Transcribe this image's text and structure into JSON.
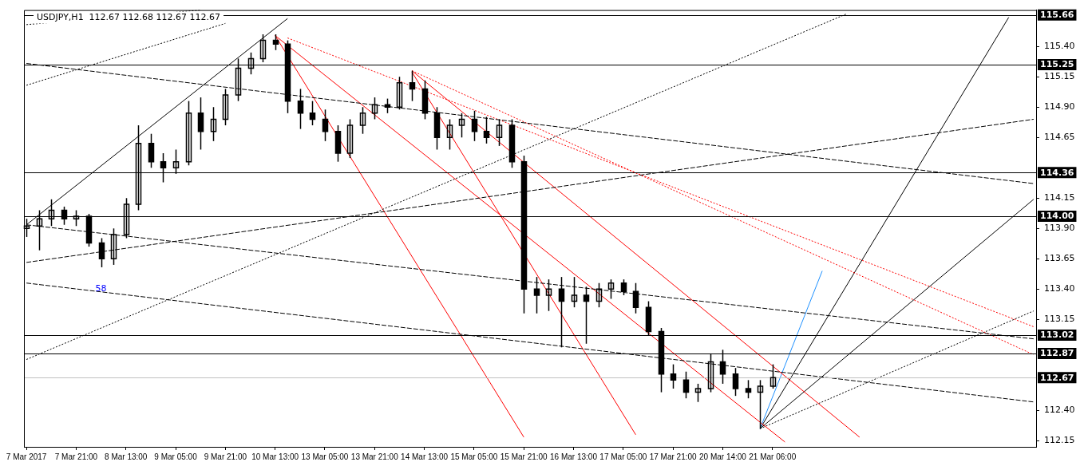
{
  "chart_data": {
    "type": "candlestick",
    "title": "USDJPY,H1  112.67 112.68 112.67 112.67",
    "color": "#000000",
    "categories": [
      "7 Mar 2017",
      null,
      null,
      null,
      "7 Mar 21:00",
      null,
      null,
      null,
      "8 Mar 13:00",
      null,
      null,
      null,
      "9 Mar 05:00",
      null,
      null,
      null,
      "9 Mar 21:00",
      null,
      null,
      null,
      "10 Mar 13:00",
      null,
      null,
      null,
      "13 Mar 05:00",
      null,
      null,
      null,
      "13 Mar 21:00",
      null,
      null,
      null,
      "14 Mar 13:00",
      null,
      null,
      null,
      "15 Mar 05:00",
      null,
      null,
      null,
      "15 Mar 21:00",
      null,
      null,
      null,
      "16 Mar 13:00",
      null,
      null,
      null,
      "17 Mar 05:00",
      null,
      null,
      null,
      "17 Mar 21:00",
      null,
      null,
      null,
      "20 Mar 14:00",
      null,
      null,
      null,
      "21 Mar 06:00",
      null,
      null,
      null,
      null,
      null,
      null,
      null,
      null,
      null,
      null,
      null,
      null,
      null,
      null,
      null,
      null,
      null,
      null,
      null,
      null,
      null
    ],
    "ohlc": [
      [
        113.9,
        113.98,
        113.83,
        113.92
      ],
      [
        113.92,
        114.05,
        113.72,
        113.98
      ],
      [
        113.98,
        114.14,
        113.92,
        114.05
      ],
      [
        114.05,
        114.08,
        113.93,
        113.98
      ],
      [
        113.98,
        114.05,
        113.92,
        114.0
      ],
      [
        114.0,
        114.02,
        113.75,
        113.78
      ],
      [
        113.78,
        113.82,
        113.58,
        113.65
      ],
      [
        113.65,
        113.9,
        113.6,
        113.85
      ],
      [
        113.85,
        114.15,
        113.82,
        114.1
      ],
      [
        114.1,
        114.75,
        114.05,
        114.6
      ],
      [
        114.6,
        114.68,
        114.4,
        114.45
      ],
      [
        114.45,
        114.52,
        114.28,
        114.4
      ],
      [
        114.4,
        114.55,
        114.35,
        114.45
      ],
      [
        114.45,
        114.95,
        114.42,
        114.85
      ],
      [
        114.85,
        114.98,
        114.55,
        114.7
      ],
      [
        114.7,
        114.9,
        114.62,
        114.8
      ],
      [
        114.8,
        115.05,
        114.75,
        115.0
      ],
      [
        115.0,
        115.3,
        114.95,
        115.22
      ],
      [
        115.22,
        115.35,
        115.17,
        115.3
      ],
      [
        115.3,
        115.5,
        115.27,
        115.45
      ],
      [
        115.45,
        115.5,
        115.37,
        115.42
      ],
      [
        115.42,
        115.45,
        114.85,
        114.95
      ],
      [
        114.95,
        115.05,
        114.72,
        114.85
      ],
      [
        114.85,
        114.95,
        114.75,
        114.8
      ],
      [
        114.8,
        114.88,
        114.62,
        114.7
      ],
      [
        114.7,
        114.75,
        114.45,
        114.52
      ],
      [
        114.52,
        114.8,
        114.48,
        114.75
      ],
      [
        114.75,
        114.9,
        114.68,
        114.85
      ],
      [
        114.85,
        114.98,
        114.8,
        114.92
      ],
      [
        114.92,
        114.97,
        114.85,
        114.9
      ],
      [
        114.9,
        115.15,
        114.88,
        115.1
      ],
      [
        115.1,
        115.2,
        114.95,
        115.05
      ],
      [
        115.05,
        115.12,
        114.8,
        114.85
      ],
      [
        114.85,
        114.9,
        114.55,
        114.65
      ],
      [
        114.65,
        114.8,
        114.55,
        114.75
      ],
      [
        114.75,
        114.85,
        114.65,
        114.8
      ],
      [
        114.8,
        114.87,
        114.62,
        114.7
      ],
      [
        114.7,
        114.82,
        114.6,
        114.65
      ],
      [
        114.65,
        114.8,
        114.58,
        114.75
      ],
      [
        114.75,
        114.8,
        114.4,
        114.45
      ],
      [
        114.45,
        114.5,
        113.2,
        113.4
      ],
      [
        113.4,
        113.5,
        113.2,
        113.35
      ],
      [
        113.35,
        113.48,
        113.22,
        113.4
      ],
      [
        113.4,
        113.5,
        112.92,
        113.3
      ],
      [
        113.3,
        113.5,
        113.25,
        113.35
      ],
      [
        113.35,
        113.42,
        112.95,
        113.3
      ],
      [
        113.3,
        113.45,
        113.25,
        113.4
      ],
      [
        113.4,
        113.48,
        113.32,
        113.45
      ],
      [
        113.45,
        113.48,
        113.35,
        113.38
      ],
      [
        113.38,
        113.45,
        113.2,
        113.25
      ],
      [
        113.25,
        113.3,
        113.02,
        113.05
      ],
      [
        113.05,
        113.08,
        112.55,
        112.7
      ],
      [
        112.7,
        112.78,
        112.58,
        112.65
      ],
      [
        112.65,
        112.72,
        112.5,
        112.55
      ],
      [
        112.55,
        112.62,
        112.47,
        112.58
      ],
      [
        112.58,
        112.87,
        112.55,
        112.8
      ],
      [
        112.8,
        112.9,
        112.62,
        112.7
      ],
      [
        112.7,
        112.75,
        112.52,
        112.58
      ],
      [
        112.58,
        112.65,
        112.5,
        112.55
      ],
      [
        112.55,
        112.65,
        112.25,
        112.6
      ],
      [
        112.6,
        112.78,
        112.58,
        112.67
      ],
      null,
      null,
      null,
      null,
      null,
      null,
      null,
      null,
      null,
      null,
      null,
      null,
      null,
      null,
      null,
      null,
      null,
      null,
      null,
      null,
      null
    ],
    "series": [
      {
        "type": "line",
        "color": "#000000",
        "line_style": "solid",
        "values": [
          113.93,
          null,
          null,
          null,
          null,
          null,
          null,
          null,
          null,
          null,
          null,
          null,
          null,
          null,
          null,
          null,
          null,
          null,
          null,
          null,
          null,
          115.63,
          null,
          null,
          null,
          null,
          null,
          null,
          null,
          null,
          null,
          null,
          null,
          null,
          null,
          null,
          null,
          null,
          null,
          null,
          null,
          null,
          null,
          null,
          null,
          null,
          null,
          null,
          null,
          null,
          null,
          null,
          null,
          null,
          null,
          null,
          null,
          null,
          null,
          null,
          null,
          null,
          null,
          null,
          null,
          null,
          null,
          null,
          null,
          null,
          null,
          null,
          null,
          null,
          null,
          null,
          null,
          null,
          null,
          null,
          null,
          null
        ]
      },
      {
        "type": "line",
        "color": "#000000",
        "line_style": "dotted",
        "values": [
          112.82,
          null,
          null,
          null,
          null,
          null,
          null,
          null,
          null,
          null,
          null,
          null,
          null,
          null,
          null,
          null,
          null,
          null,
          null,
          null,
          null,
          null,
          null,
          null,
          null,
          null,
          null,
          null,
          null,
          null,
          null,
          null,
          null,
          null,
          null,
          null,
          null,
          null,
          null,
          null,
          null,
          null,
          null,
          null,
          null,
          null,
          null,
          null,
          null,
          null,
          null,
          null,
          null,
          null,
          null,
          null,
          null,
          null,
          null,
          null,
          null,
          null,
          null,
          null,
          null,
          null,
          115.67,
          null,
          null,
          null,
          null,
          null,
          null,
          null,
          null,
          null,
          null,
          null,
          null,
          null,
          null,
          null
        ]
      },
      {
        "type": "line",
        "color": "#000000",
        "line_style": "dotted",
        "values": [
          115.08,
          null,
          null,
          null,
          null,
          null,
          null,
          null,
          null,
          null,
          null,
          null,
          null,
          null,
          null,
          null,
          115.59,
          null,
          null,
          null,
          null,
          null,
          null,
          null,
          null,
          null,
          null,
          null,
          null,
          null,
          null,
          null,
          null,
          null,
          null,
          null,
          null,
          null,
          null,
          null,
          null,
          null,
          null,
          null,
          null,
          null,
          null,
          null,
          null,
          null,
          null,
          null,
          null,
          null,
          null,
          null,
          null,
          null,
          null,
          null,
          null,
          null,
          null,
          null,
          null,
          null,
          null,
          null,
          null,
          null,
          null,
          null,
          null,
          null,
          null,
          null,
          null,
          null,
          null,
          null,
          null,
          null
        ]
      },
      {
        "type": "line",
        "color": "#000000",
        "line_style": "dotted",
        "values": [
          115.58,
          null,
          null,
          null,
          null,
          null,
          null,
          null,
          null,
          null,
          null,
          null,
          null,
          null,
          115.7,
          null,
          null,
          null,
          null,
          null,
          null,
          null,
          null,
          null,
          null,
          null,
          null,
          null,
          null,
          null,
          null,
          null,
          null,
          null,
          null,
          null,
          null,
          null,
          null,
          null,
          null,
          null,
          null,
          null,
          null,
          null,
          null,
          null,
          null,
          null,
          null,
          null,
          null,
          null,
          null,
          null,
          null,
          null,
          null,
          null,
          null,
          null,
          null,
          null,
          null,
          null,
          null,
          null,
          null,
          null,
          null,
          null,
          null,
          null,
          null,
          null,
          null,
          null,
          null,
          null,
          null,
          null
        ]
      },
      {
        "type": "line",
        "color": "#000000",
        "line_style": "dashed",
        "values": [
          115.26,
          null,
          null,
          null,
          null,
          null,
          null,
          null,
          null,
          null,
          null,
          null,
          null,
          null,
          null,
          null,
          null,
          null,
          null,
          null,
          null,
          null,
          null,
          null,
          null,
          null,
          null,
          null,
          null,
          null,
          null,
          null,
          null,
          null,
          null,
          null,
          null,
          null,
          null,
          null,
          null,
          null,
          null,
          null,
          null,
          null,
          null,
          null,
          null,
          null,
          null,
          null,
          null,
          null,
          null,
          null,
          null,
          null,
          null,
          null,
          null,
          null,
          null,
          null,
          null,
          null,
          null,
          null,
          null,
          null,
          null,
          null,
          null,
          null,
          null,
          null,
          null,
          null,
          null,
          null,
          null,
          114.27
        ]
      },
      {
        "type": "line",
        "color": "#000000",
        "line_style": "dashed",
        "values": [
          113.62,
          null,
          null,
          null,
          null,
          null,
          null,
          null,
          null,
          null,
          null,
          null,
          null,
          null,
          null,
          null,
          null,
          null,
          null,
          null,
          null,
          null,
          null,
          null,
          null,
          null,
          null,
          null,
          null,
          null,
          null,
          null,
          null,
          null,
          null,
          null,
          null,
          null,
          null,
          null,
          null,
          null,
          null,
          null,
          null,
          null,
          null,
          null,
          null,
          null,
          null,
          null,
          null,
          null,
          null,
          null,
          null,
          null,
          null,
          null,
          null,
          null,
          null,
          null,
          null,
          null,
          null,
          null,
          null,
          null,
          null,
          null,
          null,
          null,
          null,
          null,
          null,
          null,
          null,
          null,
          null,
          114.8
        ]
      },
      {
        "type": "line",
        "color": "#000000",
        "line_style": "dashed",
        "values": [
          113.93,
          null,
          null,
          null,
          null,
          null,
          null,
          null,
          null,
          null,
          null,
          null,
          null,
          null,
          null,
          null,
          null,
          null,
          null,
          null,
          null,
          null,
          null,
          null,
          null,
          null,
          null,
          null,
          null,
          null,
          null,
          null,
          null,
          null,
          null,
          null,
          null,
          null,
          null,
          null,
          null,
          null,
          null,
          null,
          null,
          null,
          null,
          null,
          null,
          null,
          null,
          null,
          null,
          null,
          null,
          null,
          null,
          null,
          null,
          null,
          null,
          null,
          null,
          null,
          null,
          null,
          null,
          null,
          null,
          null,
          null,
          null,
          null,
          null,
          null,
          null,
          null,
          null,
          null,
          null,
          null,
          112.99
        ]
      },
      {
        "type": "line",
        "color": "#000000",
        "line_style": "dashed",
        "values": [
          113.45,
          null,
          null,
          null,
          null,
          null,
          null,
          null,
          null,
          null,
          null,
          null,
          null,
          null,
          null,
          null,
          null,
          null,
          null,
          null,
          null,
          null,
          null,
          null,
          null,
          null,
          null,
          null,
          null,
          null,
          null,
          null,
          null,
          null,
          null,
          null,
          null,
          null,
          null,
          null,
          null,
          null,
          null,
          null,
          null,
          null,
          null,
          null,
          null,
          null,
          null,
          null,
          null,
          null,
          null,
          null,
          null,
          null,
          null,
          null,
          null,
          null,
          null,
          null,
          null,
          null,
          null,
          null,
          null,
          null,
          null,
          null,
          null,
          null,
          null,
          null,
          null,
          null,
          null,
          null,
          null,
          112.47
        ]
      },
      {
        "type": "line",
        "color": "#ff0000",
        "line_style": "solid",
        "values": [
          null,
          null,
          null,
          null,
          null,
          null,
          null,
          null,
          null,
          null,
          null,
          null,
          null,
          null,
          null,
          null,
          null,
          null,
          null,
          null,
          115.49,
          null,
          null,
          null,
          null,
          null,
          null,
          null,
          null,
          null,
          null,
          null,
          null,
          null,
          null,
          null,
          null,
          null,
          null,
          null,
          112.18,
          null,
          null,
          null,
          null,
          null,
          null,
          null,
          null,
          null,
          null,
          null,
          null,
          null,
          null,
          null,
          null,
          null,
          null,
          null,
          null,
          null,
          null,
          null,
          null,
          null,
          null,
          null,
          null,
          null,
          null,
          null,
          null,
          null,
          null,
          null,
          null,
          null,
          null,
          null,
          null,
          null
        ]
      },
      {
        "type": "line",
        "color": "#ff0000",
        "line_style": "solid",
        "values": [
          null,
          null,
          null,
          null,
          null,
          null,
          null,
          null,
          null,
          null,
          null,
          null,
          null,
          null,
          null,
          null,
          null,
          null,
          null,
          null,
          null,
          null,
          null,
          null,
          null,
          null,
          null,
          null,
          null,
          null,
          null,
          115.19,
          null,
          null,
          null,
          null,
          null,
          null,
          null,
          null,
          null,
          null,
          null,
          null,
          null,
          null,
          null,
          null,
          null,
          112.2,
          null,
          null,
          null,
          null,
          null,
          null,
          null,
          null,
          null,
          null,
          null,
          null,
          null,
          null,
          null,
          null,
          null,
          null,
          null,
          null,
          null,
          null,
          null,
          null,
          null,
          null,
          null,
          null,
          null,
          null,
          null,
          null
        ]
      },
      {
        "type": "line",
        "color": "#ff0000",
        "line_style": "solid",
        "values": [
          null,
          null,
          null,
          null,
          null,
          null,
          null,
          null,
          null,
          null,
          null,
          null,
          null,
          null,
          null,
          null,
          null,
          null,
          null,
          null,
          115.49,
          null,
          null,
          null,
          null,
          null,
          null,
          null,
          null,
          null,
          null,
          null,
          null,
          null,
          null,
          null,
          null,
          null,
          null,
          null,
          null,
          null,
          null,
          null,
          null,
          null,
          null,
          null,
          null,
          null,
          null,
          null,
          null,
          null,
          null,
          null,
          null,
          null,
          null,
          null,
          null,
          112.14,
          null,
          null,
          null,
          null,
          null,
          null,
          null,
          null,
          null,
          null,
          null,
          null,
          null,
          null,
          null,
          null,
          null,
          null,
          null,
          null
        ]
      },
      {
        "type": "line",
        "color": "#ff0000",
        "line_style": "solid",
        "values": [
          null,
          null,
          null,
          null,
          null,
          null,
          null,
          null,
          null,
          null,
          null,
          null,
          null,
          null,
          null,
          null,
          null,
          null,
          null,
          null,
          null,
          null,
          null,
          null,
          null,
          null,
          null,
          null,
          null,
          null,
          null,
          115.2,
          null,
          null,
          null,
          null,
          null,
          null,
          null,
          null,
          null,
          null,
          null,
          null,
          null,
          null,
          null,
          null,
          null,
          null,
          null,
          null,
          null,
          null,
          null,
          null,
          null,
          null,
          null,
          null,
          null,
          null,
          null,
          null,
          null,
          null,
          null,
          112.18,
          null,
          null,
          null,
          null,
          null,
          null,
          null,
          null,
          null,
          null,
          null,
          null,
          null,
          null
        ]
      },
      {
        "type": "line",
        "color": "#ff0000",
        "line_style": "dotted",
        "values": [
          null,
          null,
          null,
          null,
          null,
          null,
          null,
          null,
          null,
          null,
          null,
          null,
          null,
          null,
          null,
          null,
          null,
          null,
          null,
          null,
          null,
          115.47,
          null,
          null,
          null,
          null,
          null,
          null,
          null,
          null,
          null,
          null,
          null,
          null,
          null,
          null,
          null,
          null,
          null,
          null,
          null,
          null,
          null,
          null,
          null,
          null,
          null,
          null,
          null,
          null,
          null,
          null,
          null,
          null,
          null,
          null,
          null,
          null,
          null,
          null,
          null,
          null,
          null,
          null,
          null,
          null,
          null,
          null,
          null,
          null,
          null,
          null,
          null,
          null,
          null,
          null,
          null,
          null,
          null,
          null,
          null,
          113.09
        ]
      },
      {
        "type": "line",
        "color": "#ff0000",
        "line_style": "dotted",
        "values": [
          null,
          null,
          null,
          null,
          null,
          null,
          null,
          null,
          null,
          null,
          null,
          null,
          null,
          null,
          null,
          null,
          null,
          null,
          null,
          null,
          null,
          null,
          null,
          null,
          null,
          null,
          null,
          null,
          null,
          null,
          null,
          115.2,
          null,
          null,
          null,
          null,
          null,
          null,
          null,
          null,
          null,
          null,
          null,
          null,
          null,
          null,
          null,
          null,
          null,
          null,
          null,
          null,
          null,
          null,
          null,
          null,
          null,
          null,
          null,
          null,
          null,
          null,
          null,
          null,
          null,
          null,
          null,
          null,
          null,
          null,
          null,
          null,
          null,
          null,
          null,
          null,
          null,
          null,
          null,
          null,
          null,
          112.86
        ]
      },
      {
        "type": "line",
        "color": "#1e90ff",
        "line_style": "solid",
        "values": [
          null,
          null,
          null,
          null,
          null,
          null,
          null,
          null,
          null,
          null,
          null,
          null,
          null,
          null,
          null,
          null,
          null,
          null,
          null,
          null,
          null,
          null,
          null,
          null,
          null,
          null,
          null,
          null,
          null,
          null,
          null,
          null,
          null,
          null,
          null,
          null,
          null,
          null,
          null,
          null,
          null,
          null,
          null,
          null,
          null,
          null,
          null,
          null,
          null,
          null,
          null,
          null,
          null,
          null,
          null,
          null,
          null,
          null,
          null,
          112.25,
          null,
          null,
          null,
          null,
          113.55,
          null,
          null,
          null,
          null,
          null,
          null,
          null,
          null,
          null,
          null,
          null,
          null,
          null,
          null,
          null,
          null,
          null
        ]
      },
      {
        "type": "line",
        "color": "#000000",
        "line_style": "solid",
        "values": [
          null,
          null,
          null,
          null,
          null,
          null,
          null,
          null,
          null,
          null,
          null,
          null,
          null,
          null,
          null,
          null,
          null,
          null,
          null,
          null,
          null,
          null,
          null,
          null,
          null,
          null,
          null,
          null,
          null,
          null,
          null,
          null,
          null,
          null,
          null,
          null,
          null,
          null,
          null,
          null,
          null,
          null,
          null,
          null,
          null,
          null,
          null,
          null,
          null,
          null,
          null,
          null,
          null,
          null,
          null,
          null,
          null,
          null,
          null,
          112.25,
          null,
          null,
          null,
          null,
          null,
          null,
          null,
          null,
          null,
          null,
          null,
          null,
          null,
          null,
          null,
          null,
          null,
          null,
          null,
          115.64,
          null,
          null
        ]
      },
      {
        "type": "line",
        "color": "#000000",
        "line_style": "solid",
        "values": [
          null,
          null,
          null,
          null,
          null,
          null,
          null,
          null,
          null,
          null,
          null,
          null,
          null,
          null,
          null,
          null,
          null,
          null,
          null,
          null,
          null,
          null,
          null,
          null,
          null,
          null,
          null,
          null,
          null,
          null,
          null,
          null,
          null,
          null,
          null,
          null,
          null,
          null,
          null,
          null,
          null,
          null,
          null,
          null,
          null,
          null,
          null,
          null,
          null,
          null,
          null,
          null,
          null,
          null,
          null,
          null,
          null,
          null,
          null,
          112.25,
          null,
          null,
          null,
          null,
          null,
          null,
          null,
          null,
          null,
          null,
          null,
          null,
          null,
          null,
          null,
          null,
          null,
          null,
          null,
          null,
          null,
          114.14
        ]
      },
      {
        "type": "line",
        "color": "#000000",
        "line_style": "dotted",
        "values": [
          null,
          null,
          null,
          null,
          null,
          null,
          null,
          null,
          null,
          null,
          null,
          null,
          null,
          null,
          null,
          null,
          null,
          null,
          null,
          null,
          null,
          null,
          null,
          null,
          null,
          null,
          null,
          null,
          null,
          null,
          null,
          null,
          null,
          null,
          null,
          null,
          null,
          null,
          null,
          null,
          null,
          null,
          null,
          null,
          null,
          null,
          null,
          null,
          null,
          null,
          null,
          null,
          null,
          null,
          null,
          null,
          null,
          null,
          null,
          112.25,
          null,
          null,
          null,
          null,
          null,
          null,
          null,
          null,
          null,
          null,
          null,
          null,
          null,
          null,
          null,
          null,
          null,
          null,
          null,
          null,
          null,
          113.22
        ]
      }
    ],
    "ylim": [
      112.1,
      115.7
    ],
    "yticks": [
      {
        "value": 112.15,
        "label": "112.15"
      },
      {
        "value": 112.4,
        "label": "112.40"
      },
      {
        "value": 113.15,
        "label": "113.15"
      },
      {
        "value": 113.4,
        "label": "113.40"
      },
      {
        "value": 113.65,
        "label": "113.65"
      },
      {
        "value": 113.9,
        "label": "113.90"
      },
      {
        "value": 114.15,
        "label": "114.15"
      },
      {
        "value": 114.65,
        "label": "114.65"
      },
      {
        "value": 114.9,
        "label": "114.90"
      },
      {
        "value": 115.15,
        "label": "115.15"
      },
      {
        "value": 115.4,
        "label": "115.40"
      }
    ],
    "ref_lines": [
      {
        "axis": "y",
        "value": 115.66,
        "label": "115.66",
        "color": "#000000"
      },
      {
        "axis": "y",
        "value": 115.25,
        "label": "115.25",
        "color": "#000000"
      },
      {
        "axis": "y",
        "value": 114.36,
        "label": "114.36",
        "color": "#000000"
      },
      {
        "axis": "y",
        "value": 114.0,
        "label": "114.00",
        "color": "#000000"
      },
      {
        "axis": "y",
        "value": 113.02,
        "label": "113.02",
        "color": "#000000"
      },
      {
        "axis": "y",
        "value": 112.87,
        "label": "112.87",
        "color": "#000000"
      },
      {
        "axis": "y",
        "value": 112.67,
        "label": "112.67",
        "color": "#c0c0c0"
      }
    ],
    "annotations": [
      "58"
    ]
  }
}
